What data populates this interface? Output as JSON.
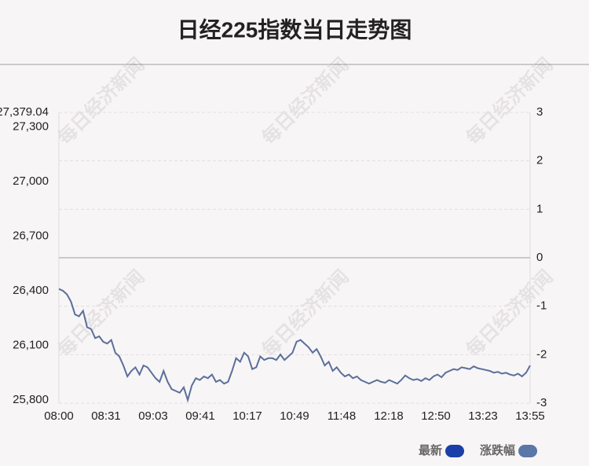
{
  "chart_data": {
    "type": "line",
    "title": "日经225指数当日走势图",
    "watermark": "每日经济新闻",
    "xtick_labels": [
      "08:00",
      "08:31",
      "09:03",
      "09:41",
      "10:17",
      "10:49",
      "11:48",
      "12:18",
      "12:50",
      "13:23",
      "13:55"
    ],
    "series": [
      {
        "name": "最新",
        "color": "#5a6f9a",
        "values": [
          26410,
          26400,
          26380,
          26340,
          26270,
          26260,
          26290,
          26200,
          26190,
          26140,
          26150,
          26120,
          26110,
          26130,
          26060,
          26040,
          25990,
          25930,
          25960,
          25980,
          25940,
          25990,
          25980,
          25950,
          25920,
          25900,
          25960,
          25900,
          25860,
          25850,
          25840,
          25870,
          25800,
          25880,
          25920,
          25910,
          25930,
          25920,
          25940,
          25900,
          25910,
          25890,
          25900,
          25960,
          26030,
          26010,
          26060,
          26040,
          25970,
          25980,
          26040,
          26020,
          26030,
          26030,
          26020,
          26050,
          26020,
          26040,
          26060,
          26120,
          26130,
          26110,
          26090,
          26060,
          26080,
          26040,
          25990,
          26010,
          25960,
          25980,
          25950,
          25930,
          25940,
          25920,
          25930,
          25910,
          25900,
          25890,
          25900,
          25910,
          25900,
          25895,
          25910,
          25900,
          25890,
          25910,
          25935,
          25920,
          25910,
          25915,
          25905,
          25920,
          25910,
          25930,
          25940,
          25925,
          25950,
          25960,
          25970,
          25965,
          25980,
          25975,
          25970,
          25985,
          25975,
          25970,
          25965,
          25960,
          25950,
          25955,
          25945,
          25950,
          25940,
          25935,
          25945,
          25930,
          25950,
          25990
        ]
      }
    ],
    "legend": [
      {
        "name": "最新",
        "color": "#1a3fa8"
      },
      {
        "name": "涨跌幅",
        "color": "#5b77a8"
      }
    ],
    "ylim": [
      25783.2,
      27379.04
    ],
    "yticks": [
      {
        "value": 27379.04,
        "label": "27,379.04"
      },
      {
        "value": 27300,
        "label": "27,300"
      },
      {
        "value": 27000,
        "label": "27,000"
      },
      {
        "value": 26700,
        "label": "26,700"
      },
      {
        "value": 26400,
        "label": "26,400"
      },
      {
        "value": 26100,
        "label": "26,100"
      },
      {
        "value": 25800,
        "label": "25,800"
      }
    ],
    "y2lim": [
      -3,
      3
    ],
    "y2ticks": [
      3,
      2,
      1,
      0,
      -1,
      -2,
      -3
    ],
    "grid": true
  }
}
